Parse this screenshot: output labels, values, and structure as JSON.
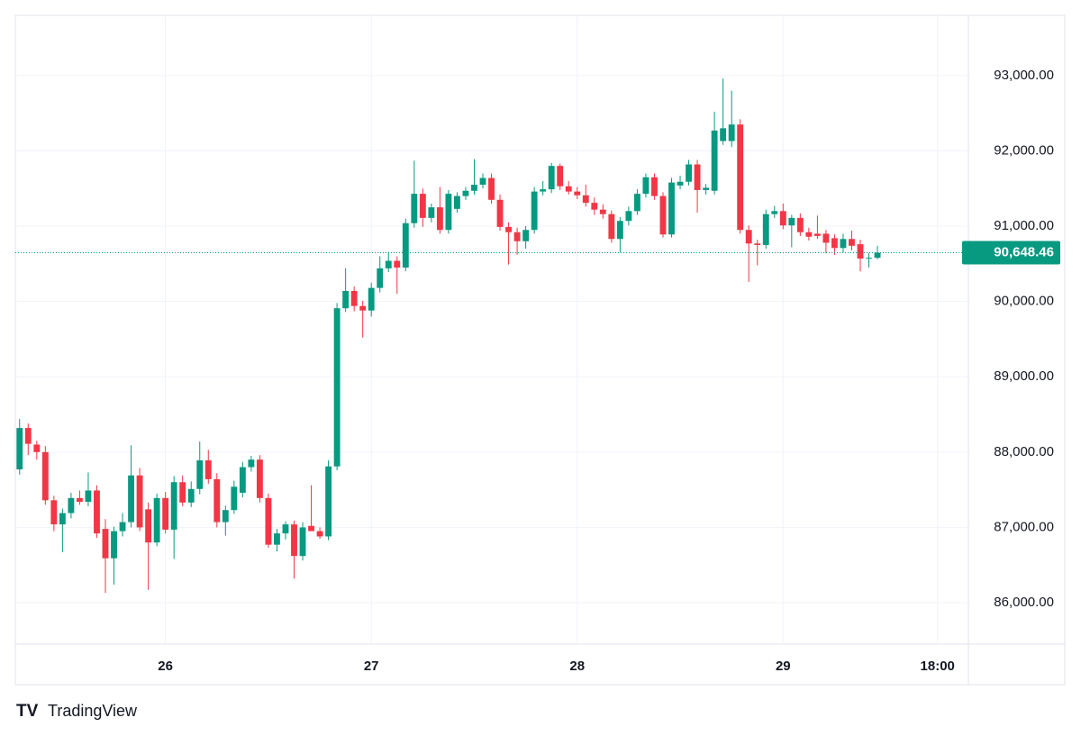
{
  "chart_data": {
    "type": "candlestick",
    "up_color": "#089981",
    "down_color": "#f23645",
    "grid": true,
    "ylim": [
      85450,
      93800
    ],
    "yticks": [
      {
        "value": 86000,
        "label": "86,000.00"
      },
      {
        "value": 87000,
        "label": "87,000.00"
      },
      {
        "value": 88000,
        "label": "88,000.00"
      },
      {
        "value": 89000,
        "label": "89,000.00"
      },
      {
        "value": 90000,
        "label": "90,000.00"
      },
      {
        "value": 91000,
        "label": "91,000.00"
      },
      {
        "value": 92000,
        "label": "92,000.00"
      },
      {
        "value": 93000,
        "label": "93,000.00"
      }
    ],
    "xlim": [
      -0.5,
      110.6
    ],
    "xticks": [
      {
        "value": 17,
        "label": "26"
      },
      {
        "value": 41,
        "label": "27"
      },
      {
        "value": 65,
        "label": "28"
      },
      {
        "value": 89,
        "label": "29"
      },
      {
        "value": 107,
        "label": "18:00"
      }
    ],
    "last_price": {
      "value": 90648.46,
      "label": "90,648.46"
    },
    "candles": [
      [
        87770,
        88440,
        87700,
        88320
      ],
      [
        88320,
        88380,
        87960,
        88110
      ],
      [
        88100,
        88150,
        87900,
        88000
      ],
      [
        88000,
        88080,
        87300,
        87360
      ],
      [
        87360,
        87420,
        86950,
        87040
      ],
      [
        87040,
        87250,
        86670,
        87190
      ],
      [
        87190,
        87460,
        87120,
        87390
      ],
      [
        87390,
        87490,
        87300,
        87340
      ],
      [
        87340,
        87730,
        87280,
        87490
      ],
      [
        87490,
        87560,
        86860,
        86920
      ],
      [
        86980,
        87110,
        86130,
        86590
      ],
      [
        86590,
        87010,
        86240,
        86950
      ],
      [
        86950,
        87190,
        86880,
        87070
      ],
      [
        87070,
        88090,
        87000,
        87690
      ],
      [
        87690,
        87790,
        86950,
        87000
      ],
      [
        87240,
        87330,
        86170,
        86800
      ],
      [
        86800,
        87450,
        86750,
        87390
      ],
      [
        87390,
        87470,
        86920,
        86970
      ],
      [
        86970,
        87680,
        86580,
        87600
      ],
      [
        87600,
        87690,
        87280,
        87330
      ],
      [
        87330,
        87610,
        87270,
        87510
      ],
      [
        87510,
        88140,
        87440,
        87890
      ],
      [
        87890,
        88030,
        87580,
        87640
      ],
      [
        87640,
        87720,
        87000,
        87070
      ],
      [
        87070,
        87290,
        86890,
        87230
      ],
      [
        87230,
        87620,
        87180,
        87540
      ],
      [
        87460,
        87870,
        87400,
        87800
      ],
      [
        87800,
        87950,
        87740,
        87900
      ],
      [
        87900,
        87960,
        87330,
        87390
      ],
      [
        87390,
        87450,
        86730,
        86770
      ],
      [
        86770,
        86980,
        86680,
        86920
      ],
      [
        86920,
        87080,
        86840,
        87040
      ],
      [
        87040,
        87090,
        86320,
        86620
      ],
      [
        86620,
        87070,
        86560,
        87000
      ],
      [
        87020,
        87560,
        86960,
        86950
      ],
      [
        86950,
        87000,
        86850,
        86880
      ],
      [
        86880,
        87890,
        86830,
        87810
      ],
      [
        87810,
        89980,
        87760,
        89910
      ],
      [
        89910,
        90440,
        89860,
        90140
      ],
      [
        90140,
        90200,
        89870,
        89940
      ],
      [
        89940,
        90010,
        89520,
        89880
      ],
      [
        89880,
        90250,
        89800,
        90180
      ],
      [
        90180,
        90600,
        90120,
        90440
      ],
      [
        90440,
        90660,
        90390,
        90540
      ],
      [
        90540,
        90600,
        90100,
        90450
      ],
      [
        90450,
        91100,
        90400,
        91040
      ],
      [
        91040,
        91870,
        90980,
        91430
      ],
      [
        91430,
        91500,
        90990,
        91110
      ],
      [
        91110,
        91300,
        91050,
        91250
      ],
      [
        91250,
        91520,
        90900,
        90950
      ],
      [
        90950,
        91480,
        90900,
        91430
      ],
      [
        91230,
        91450,
        91180,
        91400
      ],
      [
        91400,
        91520,
        91350,
        91470
      ],
      [
        91470,
        91890,
        91420,
        91550
      ],
      [
        91550,
        91700,
        91500,
        91640
      ],
      [
        91640,
        91700,
        91300,
        91350
      ],
      [
        91350,
        91420,
        90940,
        90990
      ],
      [
        90990,
        91050,
        90490,
        90920
      ],
      [
        90920,
        90980,
        90620,
        90800
      ],
      [
        90800,
        91000,
        90700,
        90950
      ],
      [
        90950,
        91520,
        90900,
        91460
      ],
      [
        91460,
        91600,
        91410,
        91490
      ],
      [
        91490,
        91840,
        91440,
        91800
      ],
      [
        91800,
        91830,
        91480,
        91530
      ],
      [
        91530,
        91600,
        91420,
        91460
      ],
      [
        91460,
        91520,
        91360,
        91410
      ],
      [
        91410,
        91550,
        91260,
        91310
      ],
      [
        91310,
        91380,
        91150,
        91220
      ],
      [
        91220,
        91290,
        91100,
        91160
      ],
      [
        91160,
        91210,
        90780,
        90830
      ],
      [
        90830,
        91120,
        90650,
        91070
      ],
      [
        91070,
        91260,
        91010,
        91200
      ],
      [
        91200,
        91490,
        91150,
        91430
      ],
      [
        91430,
        91700,
        91380,
        91650
      ],
      [
        91650,
        91700,
        91350,
        91400
      ],
      [
        91400,
        91450,
        90850,
        90890
      ],
      [
        90890,
        91640,
        90850,
        91580
      ],
      [
        91540,
        91670,
        91490,
        91590
      ],
      [
        91590,
        91880,
        91540,
        91820
      ],
      [
        91820,
        91880,
        91180,
        91480
      ],
      [
        91480,
        91560,
        91420,
        91510
      ],
      [
        91470,
        92520,
        91420,
        92270
      ],
      [
        92130,
        92960,
        92080,
        92300
      ],
      [
        92130,
        92800,
        92050,
        92350
      ],
      [
        92350,
        92420,
        90900,
        90950
      ],
      [
        90950,
        91010,
        90260,
        90770
      ],
      [
        90770,
        90820,
        90480,
        90750
      ],
      [
        90750,
        91220,
        90700,
        91160
      ],
      [
        91160,
        91270,
        91110,
        91200
      ],
      [
        91200,
        91300,
        90960,
        91010
      ],
      [
        91010,
        91150,
        90720,
        91110
      ],
      [
        91110,
        91170,
        90870,
        90920
      ],
      [
        90920,
        90980,
        90810,
        90860
      ],
      [
        90900,
        91140,
        90830,
        90870
      ],
      [
        90900,
        90950,
        90640,
        90780
      ],
      [
        90840,
        90890,
        90620,
        90710
      ],
      [
        90710,
        90900,
        90650,
        90830
      ],
      [
        90830,
        90940,
        90680,
        90740
      ],
      [
        90760,
        90820,
        90400,
        90570
      ],
      [
        90570,
        90640,
        90450,
        90580
      ],
      [
        90580,
        90740,
        90560,
        90648.46
      ]
    ]
  },
  "footer": {
    "brand": "TradingView"
  }
}
